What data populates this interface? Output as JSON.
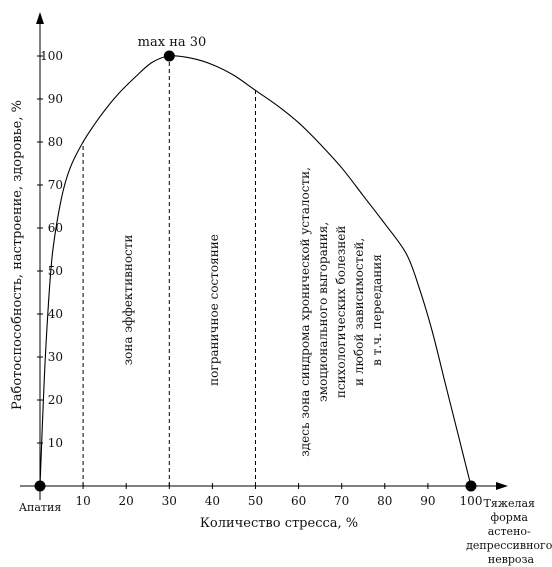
{
  "chart_data": {
    "type": "line",
    "xlabel": "Количество стресса, %",
    "ylabel": "Работоспособность, настроение, здоровье, %",
    "xlim": [
      0,
      100
    ],
    "ylim": [
      0,
      100
    ],
    "x_ticks": [
      10,
      20,
      30,
      40,
      50,
      60,
      70,
      80,
      90,
      100
    ],
    "y_ticks": [
      10,
      20,
      30,
      40,
      50,
      60,
      70,
      80,
      90,
      100
    ],
    "series": [
      {
        "x": [
          0,
          1,
          2,
          3,
          5,
          7,
          10,
          14,
          18,
          22,
          26,
          30,
          35,
          40,
          45,
          50,
          55,
          60,
          65,
          70,
          75,
          80,
          85,
          88,
          91,
          94,
          97,
          100
        ],
        "values": [
          0,
          25,
          43,
          55,
          67,
          74,
          80,
          86,
          91,
          95,
          98.5,
          100,
          99.5,
          98,
          95.5,
          92,
          88.5,
          84.5,
          79.5,
          74,
          67.5,
          61,
          54,
          46,
          36,
          24,
          12,
          0
        ],
        "color": "#000000"
      }
    ],
    "markers": [
      {
        "x": 0,
        "y": 0
      },
      {
        "x": 30,
        "y": 100
      },
      {
        "x": 100,
        "y": 0
      }
    ],
    "vertical_lines": [
      {
        "x": 10,
        "y": 80
      },
      {
        "x": 30,
        "y": 100
      },
      {
        "x": 50,
        "y": 92
      }
    ],
    "annotations": {
      "max": "max на 30",
      "start": "Апатия",
      "end": [
        "Тяжелая",
        "форма",
        "астено-",
        "депрессивного",
        "невроза"
      ]
    },
    "zones": [
      {
        "lines": [
          "зона эффективности"
        ]
      },
      {
        "lines": [
          "пограничное состояние"
        ]
      },
      {
        "lines": [
          "здесь зона синдрома хронической усталости,",
          "эмоционального выгорания,",
          "психологических болезней",
          "и любой зависимостей,",
          "в т.ч. переедания"
        ]
      }
    ],
    "grid": false
  }
}
